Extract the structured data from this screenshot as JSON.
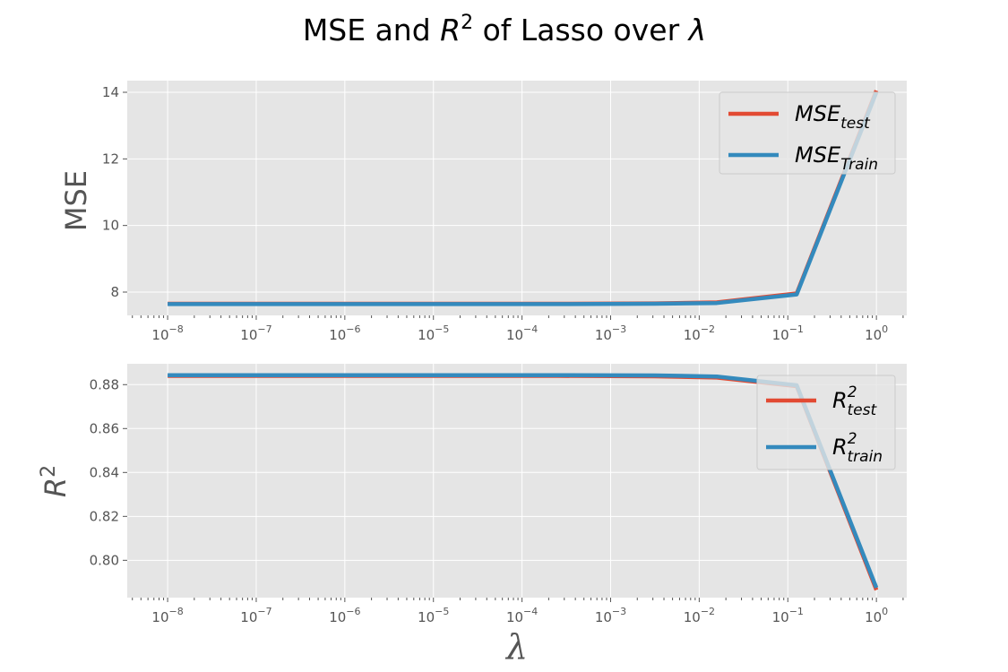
{
  "title": {
    "prefix": "MSE and ",
    "r": "R",
    "sup": "2",
    "mid": " of Lasso over ",
    "lambda": "λ"
  },
  "x_tick_labels": [
    {
      "base": "10",
      "exp": "−8"
    },
    {
      "base": "10",
      "exp": "−7"
    },
    {
      "base": "10",
      "exp": "−6"
    },
    {
      "base": "10",
      "exp": "−5"
    },
    {
      "base": "10",
      "exp": "−4"
    },
    {
      "base": "10",
      "exp": "−3"
    },
    {
      "base": "10",
      "exp": "−2"
    },
    {
      "base": "10",
      "exp": "−1"
    },
    {
      "base": "10",
      "exp": "0"
    }
  ],
  "chart_data": [
    {
      "type": "line",
      "xscale": "log",
      "xlim": [
        3.5e-09,
        2.2
      ],
      "ylim": [
        7.3,
        14.35
      ],
      "yticks": [
        8,
        10,
        12,
        14
      ],
      "ytick_labels": [
        "8",
        "10",
        "12",
        "14"
      ],
      "ylabel": "MSE",
      "xlabel": "",
      "grid": true,
      "legend_position": "top-right",
      "x": [
        1e-08,
        1.26e-07,
        1.58e-06,
        2e-05,
        0.00025,
        0.00316,
        0.0158,
        0.126,
        1.0
      ],
      "series": [
        {
          "name_main": "MSE",
          "name_sub": "test",
          "color": "#E24A33",
          "values": [
            7.65,
            7.65,
            7.65,
            7.65,
            7.65,
            7.66,
            7.69,
            7.96,
            14.05
          ]
        },
        {
          "name_main": "MSE",
          "name_sub": "Train",
          "color": "#348ABD",
          "values": [
            7.64,
            7.64,
            7.64,
            7.64,
            7.64,
            7.65,
            7.67,
            7.93,
            14.0
          ]
        }
      ]
    },
    {
      "type": "line",
      "xscale": "log",
      "xlim": [
        3.5e-09,
        2.2
      ],
      "ylim": [
        0.783,
        0.8895
      ],
      "yticks": [
        0.8,
        0.82,
        0.84,
        0.86,
        0.88
      ],
      "ytick_labels": [
        "0.80",
        "0.82",
        "0.84",
        "0.86",
        "0.88"
      ],
      "ylabel_main": "R",
      "ylabel_sup": "2",
      "xlabel": "λ",
      "grid": true,
      "legend_position": "top-right",
      "x": [
        1e-08,
        1.26e-07,
        1.58e-06,
        2e-05,
        0.00025,
        0.00316,
        0.0158,
        0.126,
        1.0
      ],
      "series": [
        {
          "name_main": "R",
          "name_sup": "2",
          "name_sub": "test",
          "color": "#E24A33",
          "values": [
            0.884,
            0.884,
            0.884,
            0.884,
            0.884,
            0.8838,
            0.8832,
            0.8793,
            0.7865
          ]
        },
        {
          "name_main": "R",
          "name_sup": "2",
          "name_sub": "train",
          "color": "#348ABD",
          "values": [
            0.8843,
            0.8843,
            0.8843,
            0.8843,
            0.8843,
            0.8842,
            0.8837,
            0.8797,
            0.7875
          ]
        }
      ]
    }
  ]
}
